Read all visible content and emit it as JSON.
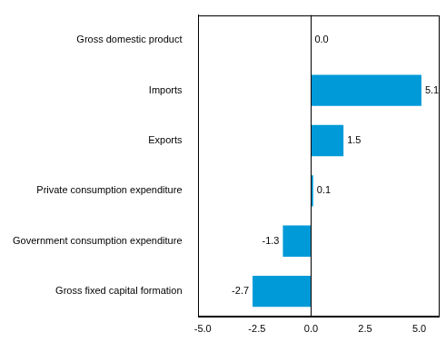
{
  "chart_data": {
    "type": "bar",
    "orientation": "horizontal",
    "categories": [
      "Gross domestic product",
      "Imports",
      "Exports",
      "Private consumption expenditure",
      "Government consumption expenditure",
      "Gross fixed capital formation"
    ],
    "values": [
      0.0,
      5.1,
      1.5,
      0.1,
      -1.3,
      -2.7
    ],
    "value_labels": [
      "0.0",
      "5.1",
      "1.5",
      "0.1",
      "-1.3",
      "-2.7"
    ],
    "color": "#009ad8",
    "xlim": [
      -5.2,
      5.9
    ],
    "xticks": [
      {
        "value": -5,
        "label": "-5.0"
      },
      {
        "value": -2.5,
        "label": "-2.5"
      },
      {
        "value": 0,
        "label": "0.0"
      },
      {
        "value": 2.5,
        "label": "2.5"
      },
      {
        "value": 5,
        "label": "5.0"
      }
    ],
    "grid": false,
    "data_labels": true
  }
}
